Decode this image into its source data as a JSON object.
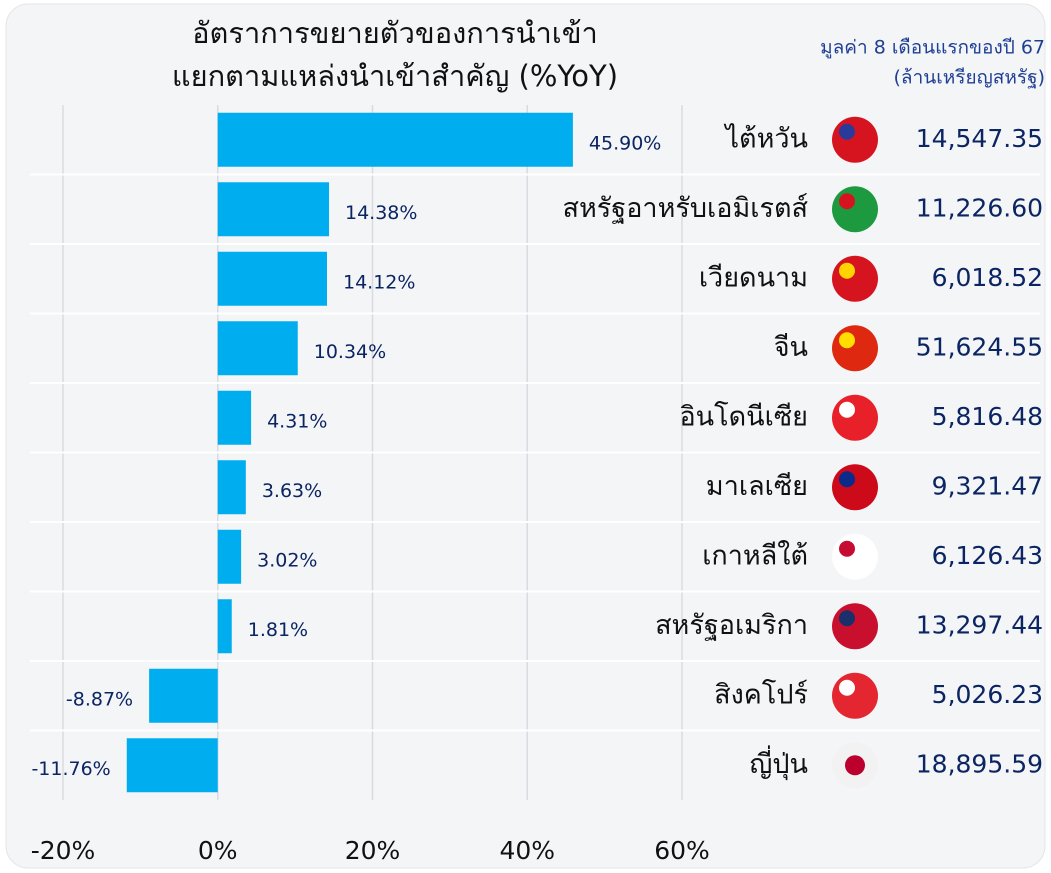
{
  "chart_data": {
    "type": "hbar",
    "title_lines": [
      "อัตราการขยายตัวของการนำเข้า",
      "แยกตามแหล่งนำเข้าสำคัญ (%YoY)"
    ],
    "subtitle_lines": [
      "มูลค่า 8 เดือนแรกของปี 67",
      "(ล้านเหรียญสหรัฐ)"
    ],
    "categories": [
      "ไต้หวัน",
      "สหรัฐอาหรับเอมิเรตส์",
      "เวียดนาม",
      "จีน",
      "อินโดนีเซีย",
      "มาเลเซีย",
      "เกาหลีใต้",
      "สหรัฐอเมริกา",
      "สิงคโปร์",
      "ญี่ปุ่น"
    ],
    "values": [
      45.9,
      14.38,
      14.12,
      10.34,
      4.31,
      3.63,
      3.02,
      1.81,
      -8.87,
      -11.76
    ],
    "value_labels": [
      "45.90%",
      "14.38%",
      "14.12%",
      "10.34%",
      "4.31%",
      "3.63%",
      "3.02%",
      "1.81%",
      "-8.87%",
      "-11.76%"
    ],
    "import_values": [
      "14,547.35",
      "11,226.60",
      "6,018.52",
      "51,624.55",
      "5,816.48",
      "9,321.47",
      "6,126.43",
      "13,297.44",
      "5,026.23",
      "18,895.59"
    ],
    "color": "#00aeef",
    "xlim": [
      -20,
      60
    ],
    "xticks": [
      {
        "value": -20,
        "label": "-20%"
      },
      {
        "value": 0,
        "label": "0%"
      },
      {
        "value": 20,
        "label": "20%"
      },
      {
        "value": 40,
        "label": "40%"
      },
      {
        "value": 60,
        "label": "60%"
      }
    ],
    "grid": true
  }
}
